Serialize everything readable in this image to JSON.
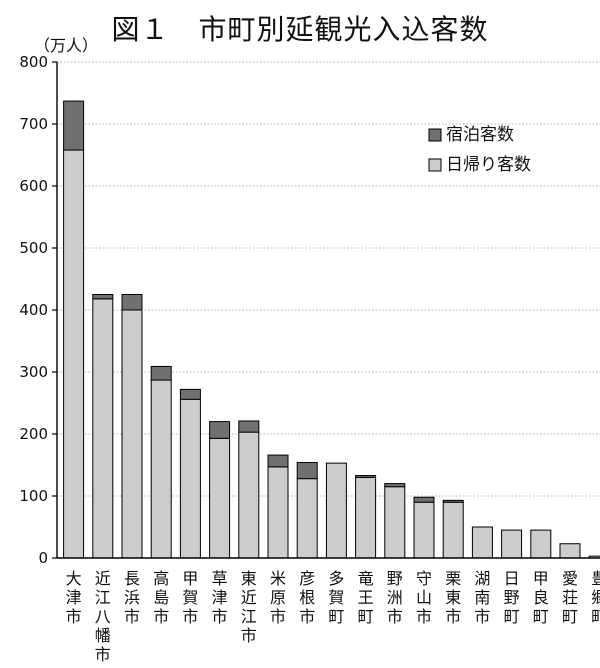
{
  "chart_data": {
    "type": "bar",
    "stacked": true,
    "title": "図１　市町別延観光入込客数",
    "unit_label": "（万人）",
    "ylim": [
      0,
      800
    ],
    "yticks": [
      0,
      100,
      200,
      300,
      400,
      500,
      600,
      700,
      800
    ],
    "grid": true,
    "legend_placement": "top-right",
    "categories": [
      "大津市",
      "近江八幡市",
      "長浜市",
      "高島市",
      "甲賀市",
      "草津市",
      "東近江市",
      "米原市",
      "彦根市",
      "多賀町",
      "竜王町",
      "野洲市",
      "守山市",
      "栗東市",
      "湖南市",
      "日野町",
      "甲良町",
      "愛荘町",
      "豊郷町"
    ],
    "series": [
      {
        "name": "日帰り客数",
        "color": "#cccccc",
        "values": [
          658,
          418,
          400,
          287,
          256,
          193,
          203,
          147,
          128,
          153,
          130,
          115,
          90,
          90,
          50,
          45,
          45,
          23,
          3
        ]
      },
      {
        "name": "宿泊客数",
        "color": "#707070",
        "values": [
          79,
          7,
          25,
          22,
          16,
          27,
          18,
          19,
          26,
          0,
          3,
          5,
          8,
          3,
          0,
          0,
          0,
          0,
          0
        ]
      }
    ],
    "legend_order": [
      "宿泊客数",
      "日帰り客数"
    ]
  }
}
